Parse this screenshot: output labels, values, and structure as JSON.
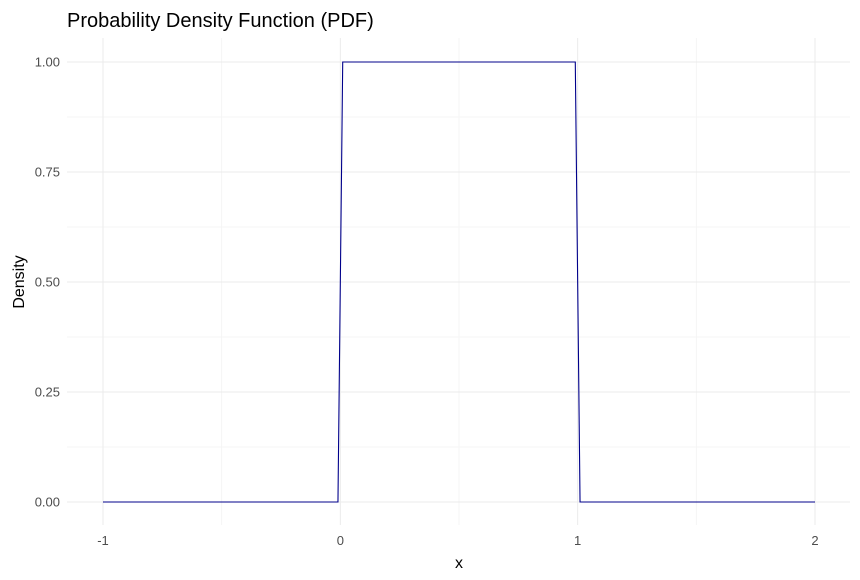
{
  "chart_data": {
    "type": "line",
    "title": "Probability Density Function (PDF)",
    "xlabel": "x",
    "ylabel": "Density",
    "xlim": [
      -1,
      2
    ],
    "ylim": [
      0,
      1
    ],
    "x_ticks": [
      -1,
      0,
      1,
      2
    ],
    "x_tick_labels": [
      "-1",
      "0",
      "1",
      "2"
    ],
    "y_ticks": [
      0,
      0.25,
      0.5,
      0.75,
      1
    ],
    "y_tick_labels": [
      "0.00",
      "0.25",
      "0.50",
      "0.75",
      "1.00"
    ],
    "grid": true,
    "series": [
      {
        "color": "#00008b",
        "x": [
          -1,
          -0.01,
          0,
          0.01,
          0.99,
          1,
          1.01,
          2
        ],
        "y": [
          0,
          0,
          0.5,
          1,
          1,
          0.5,
          0,
          0
        ]
      }
    ]
  }
}
